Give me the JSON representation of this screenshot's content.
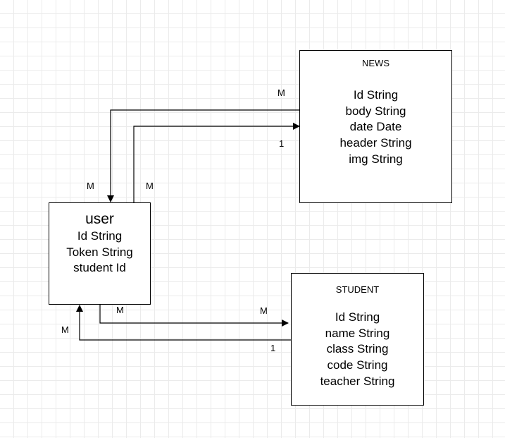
{
  "entities": {
    "news": {
      "title": "NEWS",
      "fields": [
        "Id String",
        "body String",
        "date Date",
        "header String",
        "img String"
      ]
    },
    "user": {
      "title": "user",
      "fields": [
        "Id String",
        "Token String",
        "student Id"
      ]
    },
    "student": {
      "title": "STUDENT",
      "fields": [
        "Id String",
        "name String",
        "class String",
        "code String",
        "teacher String"
      ]
    }
  },
  "relationships": {
    "news_to_user": {
      "source_label": "M",
      "target_label": "M"
    },
    "user_to_news": {
      "source_label": "M",
      "target_label": "1"
    },
    "user_to_student": {
      "source_label": "M",
      "target_label": "M"
    },
    "student_to_user": {
      "source_label": "1",
      "target_label": "M"
    }
  }
}
